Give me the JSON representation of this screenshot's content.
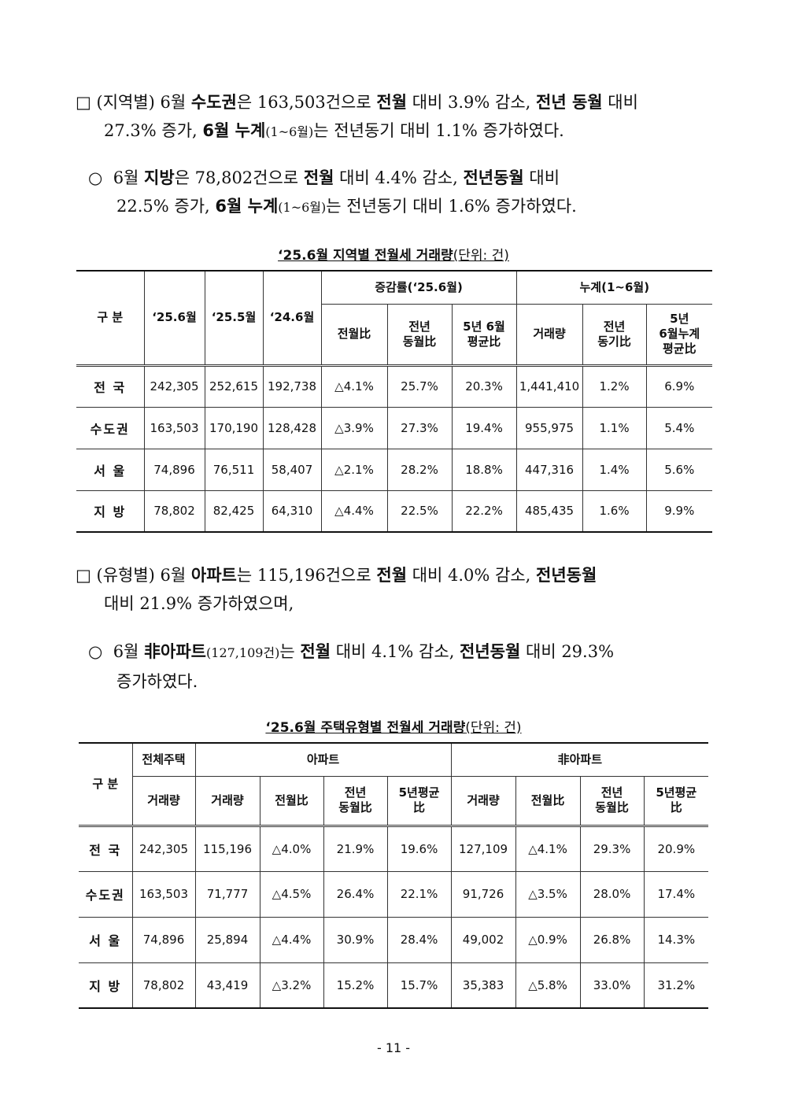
{
  "section1": {
    "bullet": "□",
    "line1": [
      {
        "t": "(지역별) 6월 ",
        "b": false
      },
      {
        "t": "수도권",
        "b": true
      },
      {
        "t": "은 163,503건으로 ",
        "b": false
      },
      {
        "t": "전월",
        "b": true
      },
      {
        "t": " 대비 3.9% 감소, ",
        "b": false
      },
      {
        "t": "전년 동월",
        "b": true
      },
      {
        "t": " 대비",
        "b": false
      }
    ],
    "line2": [
      {
        "t": "27.3% 증가, ",
        "b": false
      },
      {
        "t": "6월 누계",
        "b": true
      },
      {
        "t": "(1~6월)",
        "b": false,
        "s": true
      },
      {
        "t": "는 전년동기 대비 1.1% 증가하였다.",
        "b": false
      }
    ]
  },
  "section1_sub": {
    "bullet": "○",
    "line1": [
      {
        "t": "6월 ",
        "b": false
      },
      {
        "t": "지방",
        "b": true
      },
      {
        "t": "은 78,802건으로 ",
        "b": false
      },
      {
        "t": "전월",
        "b": true
      },
      {
        "t": " 대비 4.4% 감소, ",
        "b": false
      },
      {
        "t": "전년동월",
        "b": true
      },
      {
        "t": " 대비",
        "b": false
      }
    ],
    "line2": [
      {
        "t": "22.5% 증가, ",
        "b": false
      },
      {
        "t": "6월 누계",
        "b": true
      },
      {
        "t": "(1~6월)",
        "b": false,
        "s": true
      },
      {
        "t": "는 전년동기 대비 1.6% 증가하였다.",
        "b": false
      }
    ]
  },
  "table1": {
    "caption_title": "‘25.6월 지역별 전월세 거래량",
    "caption_unit": "(단위: 건)",
    "h_gubun": "구 분",
    "h_m1": "‘25.6월",
    "h_m2": "‘25.5월",
    "h_m3": "‘24.6월",
    "h_rate": "증감률(‘25.6월)",
    "h_cum": "누계(1~6월)",
    "h_mom": "전월比",
    "h_yoy": "전년\n동월比",
    "h_5y": "5년 6월\n평균比",
    "h_vol": "거래량",
    "h_cumyoy": "전년\n동기比",
    "h_cum5y": "5년\n6월누계\n평균比",
    "rows": [
      {
        "name": "전 국",
        "v": [
          "242,305",
          "252,615",
          "192,738",
          "△4.1%",
          "25.7%",
          "20.3%",
          "1,441,410",
          "1.2%",
          "6.9%"
        ]
      },
      {
        "name": "수도권",
        "v": [
          "163,503",
          "170,190",
          "128,428",
          "△3.9%",
          "27.3%",
          "19.4%",
          "955,975",
          "1.1%",
          "5.4%"
        ]
      },
      {
        "name": "서 울",
        "v": [
          "74,896",
          "76,511",
          "58,407",
          "△2.1%",
          "28.2%",
          "18.8%",
          "447,316",
          "1.4%",
          "5.6%"
        ]
      },
      {
        "name": "지 방",
        "v": [
          "78,802",
          "82,425",
          "64,310",
          "△4.4%",
          "22.5%",
          "22.2%",
          "485,435",
          "1.6%",
          "9.9%"
        ]
      }
    ]
  },
  "section2": {
    "bullet": "□",
    "line1": [
      {
        "t": "(유형별) 6월 ",
        "b": false
      },
      {
        "t": "아파트",
        "b": true
      },
      {
        "t": "는 115,196건으로 ",
        "b": false
      },
      {
        "t": "전월",
        "b": true
      },
      {
        "t": " 대비 4.0% 감소, ",
        "b": false
      },
      {
        "t": "전년동월",
        "b": true
      }
    ],
    "line2": [
      {
        "t": "대비 21.9% 증가하였으며,",
        "b": false
      }
    ]
  },
  "section2_sub": {
    "bullet": "○",
    "line1": [
      {
        "t": "6월 ",
        "b": false
      },
      {
        "t": "非아파트",
        "b": true
      },
      {
        "t": "(127,109건)",
        "b": false,
        "s": true
      },
      {
        "t": "는 ",
        "b": false
      },
      {
        "t": "전월",
        "b": true
      },
      {
        "t": " 대비 4.1% 감소, ",
        "b": false
      },
      {
        "t": "전년동월",
        "b": true
      },
      {
        "t": " 대비 29.3%",
        "b": false
      }
    ],
    "line2": [
      {
        "t": "증가하였다.",
        "b": false
      }
    ]
  },
  "table2": {
    "caption_title": "‘25.6월 주택유형별 전월세 거래량",
    "caption_unit": "(단위: 건)",
    "h_gubun": "구 분",
    "h_total": "전체주택",
    "h_apt": "아파트",
    "h_nonapt": "非아파트",
    "h_vol": "거래량",
    "h_mom": "전월比",
    "h_yoy": "전년\n동월比",
    "h_5y": "5년평균\n比",
    "rows": [
      {
        "name": "전 국",
        "v": [
          "242,305",
          "115,196",
          "△4.0%",
          "21.9%",
          "19.6%",
          "127,109",
          "△4.1%",
          "29.3%",
          "20.9%"
        ]
      },
      {
        "name": "수도권",
        "v": [
          "163,503",
          "71,777",
          "△4.5%",
          "26.4%",
          "22.1%",
          "91,726",
          "△3.5%",
          "28.0%",
          "17.4%"
        ]
      },
      {
        "name": "서 울",
        "v": [
          "74,896",
          "25,894",
          "△4.4%",
          "30.9%",
          "28.4%",
          "49,002",
          "△0.9%",
          "26.8%",
          "14.3%"
        ]
      },
      {
        "name": "지 방",
        "v": [
          "78,802",
          "43,419",
          "△3.2%",
          "15.2%",
          "15.7%",
          "35,383",
          "△5.8%",
          "33.0%",
          "31.2%"
        ]
      }
    ]
  },
  "footer": {
    "page": "- 11 -"
  }
}
